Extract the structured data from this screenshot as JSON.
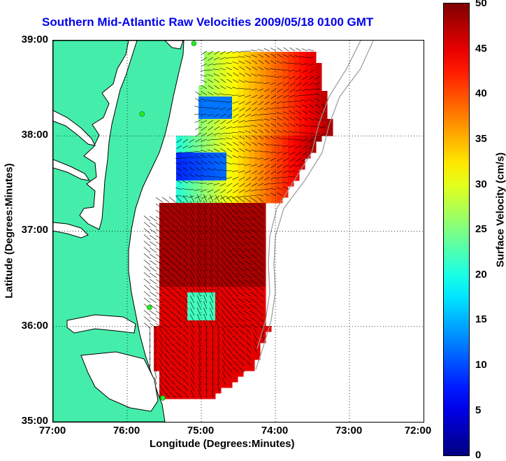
{
  "title": "Southern Mid-Atlantic Raw Velocities 2009/05/18 0100 GMT",
  "xlabel": "Longitude (Degrees:Minutes)",
  "ylabel": "Latitude (Degrees:Minutes)",
  "colorbar_label": "Surface Velocity (cm/s)",
  "x_ticks": [
    "77:00",
    "76:00",
    "75:00",
    "74:00",
    "73:00",
    "72:00"
  ],
  "y_ticks": [
    "39:00",
    "38:00",
    "37:00",
    "36:00",
    "35:00"
  ],
  "colorbar_ticks": [
    "50",
    "45",
    "40",
    "35",
    "30",
    "25",
    "20",
    "15",
    "10",
    "5",
    "0"
  ],
  "colors": {
    "land": "#44eeaa",
    "coast_line": "#000000",
    "bathymetry": "#999999",
    "grid": "#000000",
    "title": "#0000ee",
    "site_marker": "#22ee22"
  },
  "map": {
    "lon_range": [
      -77,
      -72
    ],
    "lat_range": [
      35,
      39
    ],
    "velocity_range_cm_s": [
      0,
      50
    ],
    "grid_style": "dotted",
    "sites": [
      {
        "lon": -75.1,
        "lat": 38.97
      },
      {
        "lon": -75.8,
        "lat": 38.23
      },
      {
        "lon": -75.7,
        "lat": 36.2
      },
      {
        "lon": -75.52,
        "lat": 35.25
      }
    ]
  }
}
